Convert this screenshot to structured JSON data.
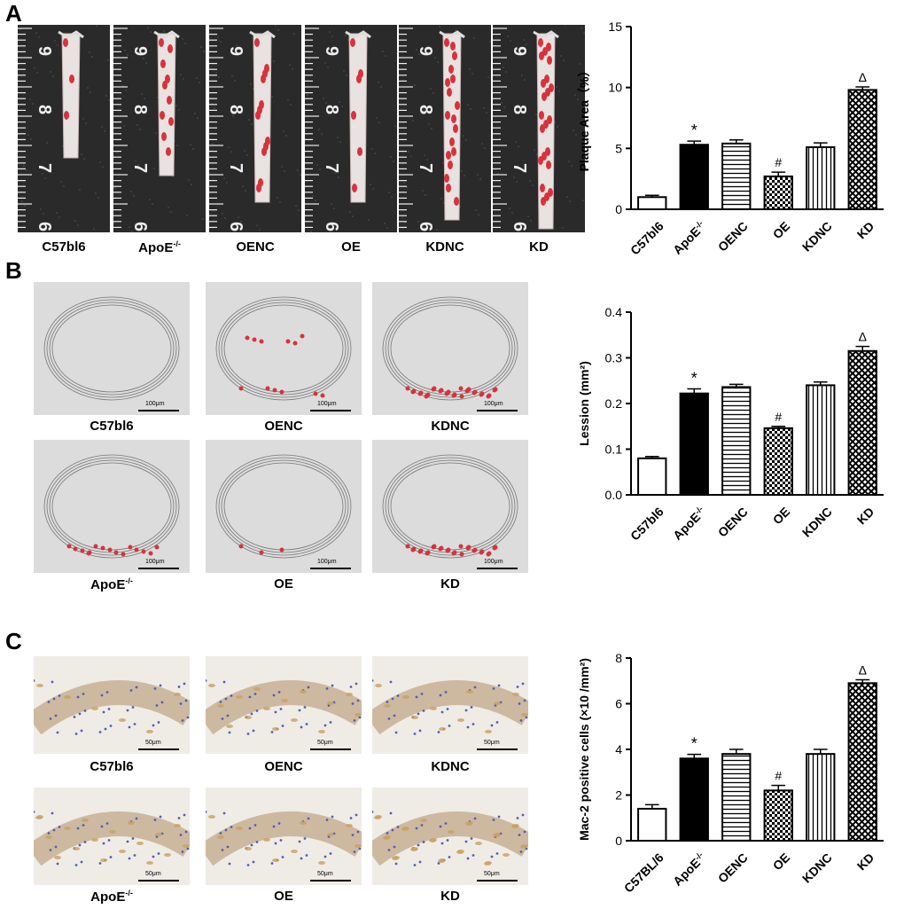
{
  "panels": {
    "a": {
      "letter": "A",
      "groups": [
        "C57bl6",
        "ApoE",
        "OENC",
        "OE",
        "KDNC",
        "KD"
      ],
      "ruler_marks": [
        "9",
        "8",
        "7",
        "6"
      ]
    },
    "b": {
      "letter": "B",
      "row1": [
        "C57bl6",
        "OENC",
        "KDNC"
      ],
      "row2": [
        "ApoE",
        "OE",
        "KD"
      ],
      "scale": "100μm"
    },
    "c": {
      "letter": "C",
      "row1": [
        "C57bl6",
        "OENC",
        "KDNC"
      ],
      "row2": [
        "ApoE",
        "OE",
        "KD"
      ],
      "scale": "50μm"
    }
  },
  "superscript": "-/-",
  "colors": {
    "plaque_red": "#d8323c",
    "ruler_bg": "#2a2a2a",
    "he_bg": "#dcdcdc",
    "ihc_bg": "#efece6",
    "stain_brown": "#c8a064",
    "nuclei": "#5060b0"
  },
  "chart_data": [
    {
      "type": "bar",
      "ylabel": "Plaque Area（%）",
      "ylim": [
        0,
        15
      ],
      "yticks": [
        "0",
        "5",
        "10",
        "15"
      ],
      "categories": [
        "C57bl6",
        "ApoE",
        "OENC",
        "OE",
        "KDNC",
        "KD"
      ],
      "values": [
        1.0,
        5.3,
        5.4,
        2.7,
        5.1,
        9.8
      ],
      "errors": [
        0.15,
        0.3,
        0.3,
        0.35,
        0.35,
        0.25
      ],
      "annotations": [
        "",
        "*",
        "",
        "#",
        "",
        "Δ"
      ]
    },
    {
      "type": "bar",
      "ylabel": "Lession (mm²)",
      "ylim": [
        0,
        0.4
      ],
      "yticks": [
        "0.0",
        "0.1",
        "0.2",
        "0.3",
        "0.4"
      ],
      "categories": [
        "C57bl6",
        "ApoE",
        "OENC",
        "OE",
        "KDNC",
        "KD"
      ],
      "values": [
        0.08,
        0.222,
        0.236,
        0.146,
        0.24,
        0.315
      ],
      "errors": [
        0.004,
        0.01,
        0.006,
        0.004,
        0.007,
        0.01
      ],
      "annotations": [
        "",
        "*",
        "",
        "#",
        "",
        "Δ"
      ]
    },
    {
      "type": "bar",
      "ylabel": "Mac-2 positive cells (×10 /mm²)",
      "ylim": [
        0,
        8
      ],
      "yticks": [
        "0",
        "2",
        "4",
        "6",
        "8"
      ],
      "categories": [
        "C57BL/6",
        "ApoE",
        "OENC",
        "OE",
        "KDNC",
        "KD"
      ],
      "values": [
        1.4,
        3.6,
        3.8,
        2.2,
        3.8,
        6.9
      ],
      "errors": [
        0.18,
        0.18,
        0.2,
        0.22,
        0.2,
        0.15
      ],
      "annotations": [
        "",
        "*",
        "",
        "#",
        "",
        "Δ"
      ]
    }
  ]
}
